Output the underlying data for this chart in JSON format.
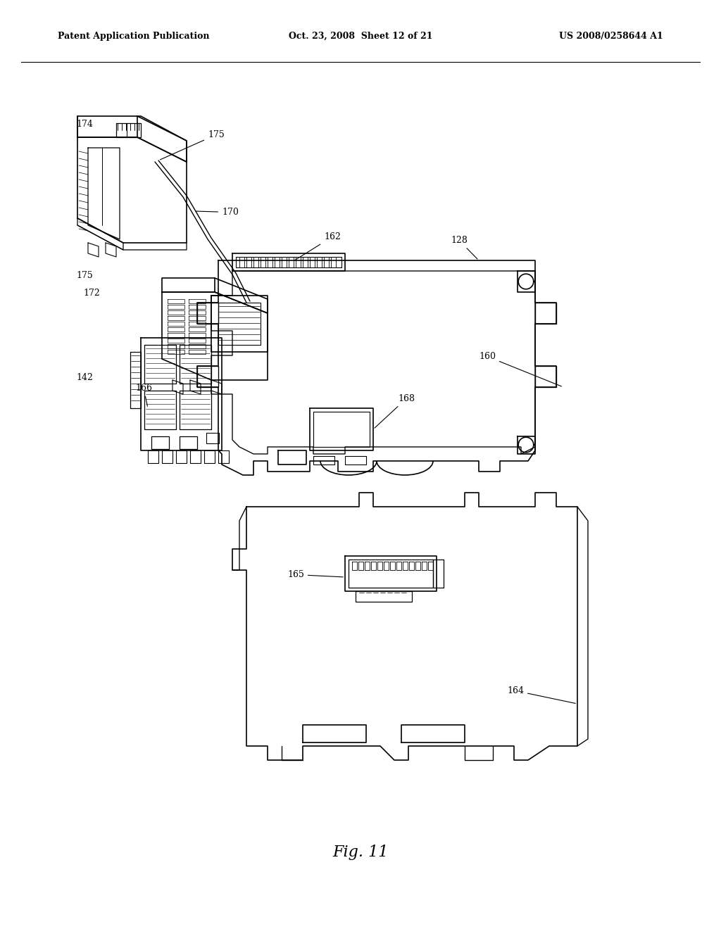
{
  "background_color": "#ffffff",
  "title_left": "Patent Application Publication",
  "title_center": "Oct. 23, 2008  Sheet 12 of 21",
  "title_right": "US 2008/0258644 A1",
  "fig_label": "Fig. 11",
  "header_fontsize": 9,
  "fig_label_fontsize": 16,
  "line_color": "#000000",
  "line_width": 1.2
}
